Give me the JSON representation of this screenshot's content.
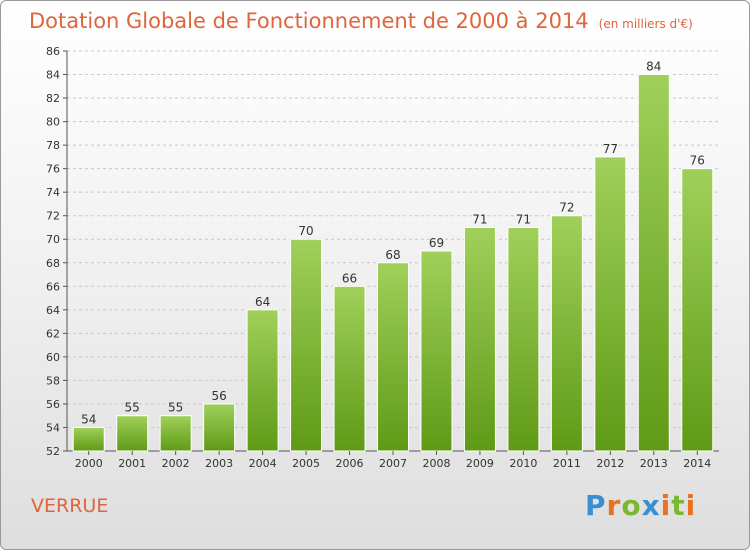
{
  "header": {
    "title": "Dotation Globale de Fonctionnement de 2000 à 2014",
    "subtitle": "(en milliers d'€)"
  },
  "footer": {
    "place_name": "VERRUE",
    "logo_text": "Proxiti",
    "logo_letters": [
      "P",
      "r",
      "o",
      "x",
      "i",
      "t",
      "i"
    ]
  },
  "colors": {
    "bar_top": "#a0d05a",
    "bar_bottom": "#5f9a16",
    "title": "#e0643c",
    "grid": "#c8c8c8"
  },
  "chart_data": {
    "type": "bar",
    "categories": [
      "2000",
      "2001",
      "2002",
      "2003",
      "2004",
      "2005",
      "2006",
      "2007",
      "2008",
      "2009",
      "2010",
      "2011",
      "2012",
      "2013",
      "2014"
    ],
    "values": [
      54,
      55,
      55,
      56,
      64,
      70,
      66,
      68,
      69,
      71,
      71,
      72,
      77,
      84,
      76
    ],
    "ylim": [
      52,
      86
    ],
    "yticks": [
      52,
      54,
      56,
      58,
      60,
      62,
      64,
      66,
      68,
      70,
      72,
      74,
      76,
      78,
      80,
      82,
      84,
      86
    ],
    "grid": true,
    "data_labels": true
  }
}
